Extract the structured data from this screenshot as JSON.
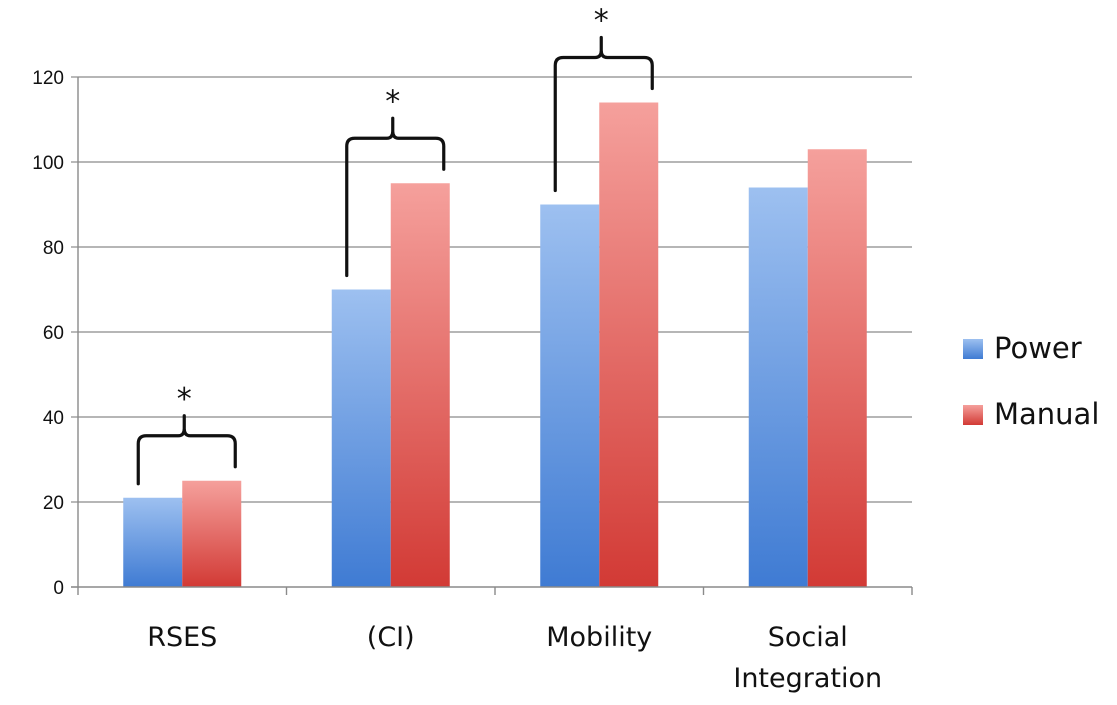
{
  "chart_data": {
    "type": "bar",
    "categories": [
      "RSES",
      "(CI)",
      "Mobility",
      "Social\nIntegration"
    ],
    "series": [
      {
        "name": "Power",
        "values": [
          21,
          70,
          90,
          94
        ],
        "color": "#4f86d9"
      },
      {
        "name": "Manual",
        "values": [
          25,
          95,
          114,
          103
        ],
        "color": "#d9443f"
      }
    ],
    "ylim": [
      0,
      120
    ],
    "yticks": [
      0,
      20,
      40,
      60,
      80,
      100,
      120
    ],
    "grid": true,
    "legend": "right",
    "significance": [
      {
        "category": 0,
        "label": "*"
      },
      {
        "category": 1,
        "label": "*"
      },
      {
        "category": 2,
        "label": "*"
      }
    ]
  }
}
